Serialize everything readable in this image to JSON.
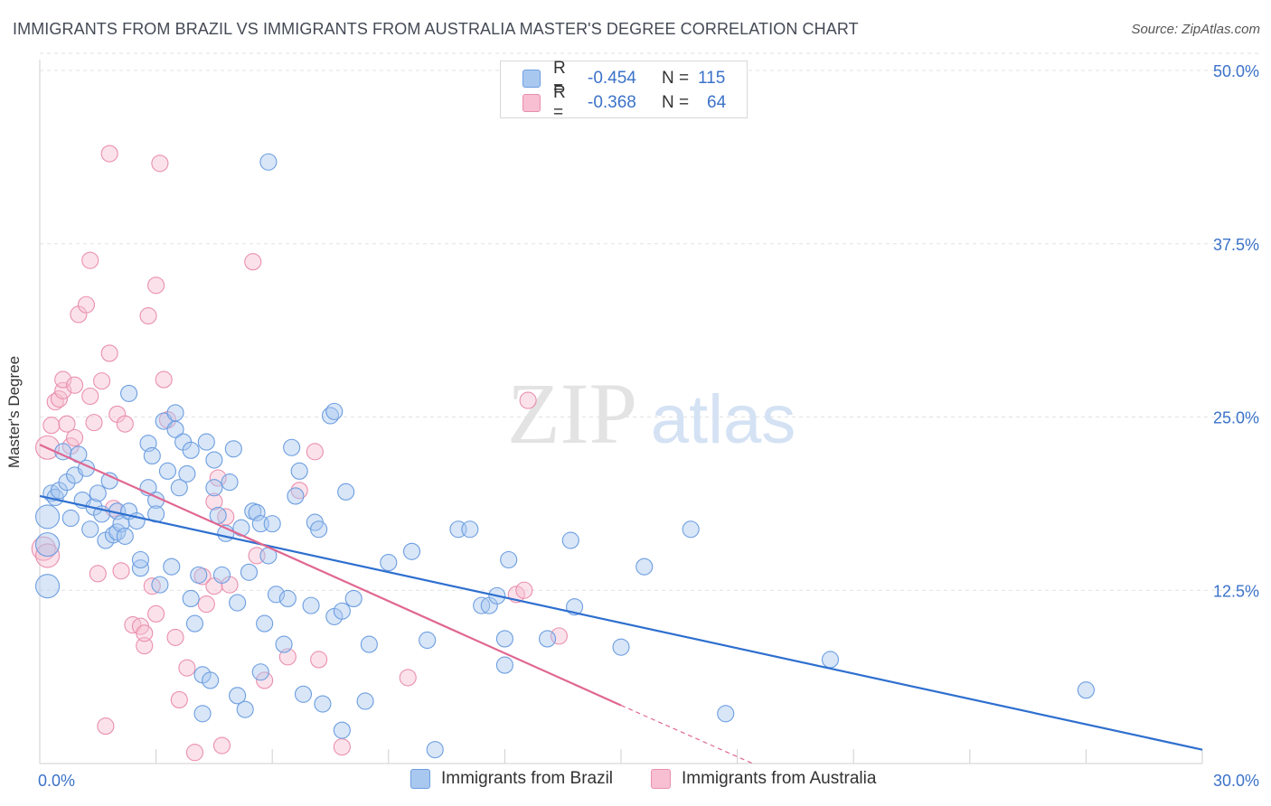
{
  "title": "IMMIGRANTS FROM BRAZIL VS IMMIGRANTS FROM AUSTRALIA MASTER'S DEGREE CORRELATION CHART",
  "source": "Source: ZipAtlas.com",
  "watermark": {
    "zip": "ZIP",
    "atlas": "atlas"
  },
  "colors": {
    "brazil_fill": "#a9c8ef",
    "brazil_stroke": "#6d9ee0",
    "brazil_line": "#2e6fcf",
    "australia_fill": "#f7bfd1",
    "australia_stroke": "#ea8fae",
    "australia_line": "#e06792",
    "tick_label": "#3b72c9",
    "grid": "#e1e1e1"
  },
  "legend_top": {
    "rows": [
      {
        "r_label": "R =",
        "r_value": "-0.454",
        "n_label": "N =",
        "n_value": "115"
      },
      {
        "r_label": "R =",
        "r_value": "-0.368",
        "n_label": "N =",
        "n_value": "64"
      }
    ]
  },
  "legend_bottom": {
    "brazil": "Immigrants from Brazil",
    "australia": "Immigrants from Australia"
  },
  "chart_data": {
    "type": "scatter",
    "title": "IMMIGRANTS FROM BRAZIL VS IMMIGRANTS FROM AUSTRALIA MASTER'S DEGREE CORRELATION CHART",
    "xlabel": "",
    "ylabel": "Master's Degree",
    "xlim": [
      0,
      30
    ],
    "ylim": [
      0,
      50
    ],
    "x_tick_labels": [
      {
        "value": 0,
        "label": "0.0%"
      },
      {
        "value": 30,
        "label": "30.0%"
      }
    ],
    "y_tick_labels": [
      {
        "value": 12.5,
        "label": "12.5%"
      },
      {
        "value": 25,
        "label": "25.0%"
      },
      {
        "value": 37.5,
        "label": "37.5%"
      },
      {
        "value": 50,
        "label": "50.0%"
      }
    ],
    "x_minor_ticks": [
      3,
      6,
      9,
      12,
      15,
      18,
      21,
      24,
      27,
      30
    ],
    "grid": true,
    "legend_position": "top-center",
    "series": [
      {
        "name": "Immigrants from Brazil",
        "r": -0.454,
        "n": 115,
        "trend": {
          "x0": 0,
          "y0": 19.3,
          "x1": 30,
          "y1": 1.0
        },
        "points": [
          [
            0.2,
            17.8
          ],
          [
            0.2,
            15.8
          ],
          [
            0.2,
            12.8
          ],
          [
            0.3,
            19.5
          ],
          [
            0.4,
            19.2
          ],
          [
            0.5,
            19.7
          ],
          [
            0.6,
            22.5
          ],
          [
            0.7,
            20.3
          ],
          [
            0.8,
            17.7
          ],
          [
            0.9,
            20.8
          ],
          [
            1.0,
            22.3
          ],
          [
            1.1,
            19.0
          ],
          [
            1.2,
            21.3
          ],
          [
            1.3,
            16.9
          ],
          [
            1.4,
            18.5
          ],
          [
            1.5,
            19.5
          ],
          [
            1.6,
            18.0
          ],
          [
            1.7,
            16.1
          ],
          [
            1.8,
            20.4
          ],
          [
            1.9,
            16.5
          ],
          [
            2.0,
            16.7
          ],
          [
            2.0,
            18.2
          ],
          [
            2.1,
            17.3
          ],
          [
            2.3,
            18.2
          ],
          [
            2.2,
            16.4
          ],
          [
            2.3,
            26.7
          ],
          [
            2.5,
            17.5
          ],
          [
            2.6,
            14.1
          ],
          [
            2.6,
            14.7
          ],
          [
            2.8,
            23.1
          ],
          [
            2.8,
            19.9
          ],
          [
            2.9,
            22.2
          ],
          [
            3.0,
            19.0
          ],
          [
            3.0,
            18.0
          ],
          [
            3.1,
            12.9
          ],
          [
            3.2,
            24.7
          ],
          [
            3.3,
            21.1
          ],
          [
            3.4,
            14.2
          ],
          [
            3.5,
            24.1
          ],
          [
            3.5,
            25.3
          ],
          [
            3.6,
            19.9
          ],
          [
            3.7,
            23.2
          ],
          [
            3.8,
            20.9
          ],
          [
            3.9,
            11.9
          ],
          [
            3.9,
            22.6
          ],
          [
            4.0,
            10.1
          ],
          [
            4.1,
            13.6
          ],
          [
            4.2,
            3.6
          ],
          [
            4.2,
            6.4
          ],
          [
            4.3,
            23.2
          ],
          [
            4.4,
            6.0
          ],
          [
            4.5,
            19.9
          ],
          [
            4.5,
            21.9
          ],
          [
            4.6,
            17.9
          ],
          [
            4.7,
            13.6
          ],
          [
            4.8,
            16.6
          ],
          [
            4.9,
            20.3
          ],
          [
            5.0,
            22.7
          ],
          [
            5.1,
            4.9
          ],
          [
            5.1,
            11.6
          ],
          [
            5.2,
            17.0
          ],
          [
            5.3,
            3.9
          ],
          [
            5.4,
            13.8
          ],
          [
            5.5,
            18.2
          ],
          [
            5.6,
            18.1
          ],
          [
            5.7,
            17.3
          ],
          [
            5.7,
            6.6
          ],
          [
            5.8,
            10.1
          ],
          [
            5.9,
            15.0
          ],
          [
            5.9,
            43.4
          ],
          [
            6.0,
            17.3
          ],
          [
            6.1,
            12.2
          ],
          [
            6.3,
            8.6
          ],
          [
            6.4,
            11.9
          ],
          [
            6.5,
            22.8
          ],
          [
            6.6,
            19.3
          ],
          [
            6.7,
            21.1
          ],
          [
            6.8,
            5.0
          ],
          [
            7.0,
            11.4
          ],
          [
            7.1,
            17.4
          ],
          [
            7.2,
            16.9
          ],
          [
            7.3,
            4.3
          ],
          [
            7.5,
            25.1
          ],
          [
            7.6,
            25.4
          ],
          [
            7.6,
            10.6
          ],
          [
            7.8,
            2.4
          ],
          [
            7.8,
            11.0
          ],
          [
            7.9,
            19.6
          ],
          [
            8.1,
            11.9
          ],
          [
            8.4,
            4.5
          ],
          [
            8.5,
            8.6
          ],
          [
            9.0,
            14.5
          ],
          [
            9.6,
            15.3
          ],
          [
            10.0,
            8.9
          ],
          [
            10.2,
            1.0
          ],
          [
            10.8,
            16.9
          ],
          [
            11.1,
            16.9
          ],
          [
            11.4,
            11.4
          ],
          [
            11.6,
            11.4
          ],
          [
            11.8,
            12.1
          ],
          [
            12.0,
            9.0
          ],
          [
            12.0,
            7.1
          ],
          [
            12.1,
            14.7
          ],
          [
            13.1,
            9.0
          ],
          [
            13.7,
            16.1
          ],
          [
            13.8,
            11.3
          ],
          [
            15.0,
            8.4
          ],
          [
            15.6,
            14.2
          ],
          [
            16.8,
            16.9
          ],
          [
            17.7,
            3.6
          ],
          [
            20.4,
            7.5
          ],
          [
            27.0,
            5.3
          ]
        ]
      },
      {
        "name": "Immigrants from Australia",
        "r": -0.368,
        "n": 64,
        "trend": {
          "x0": 0,
          "y0": 23.0,
          "x1": 15.0,
          "y1": 4.2,
          "dash_x1": 18.4,
          "dash_y1": 0
        },
        "points": [
          [
            0.1,
            15.5
          ],
          [
            0.2,
            15.0
          ],
          [
            0.2,
            22.8
          ],
          [
            0.3,
            24.4
          ],
          [
            0.4,
            26.1
          ],
          [
            0.5,
            26.3
          ],
          [
            0.6,
            26.9
          ],
          [
            0.6,
            27.7
          ],
          [
            0.7,
            24.5
          ],
          [
            0.8,
            22.9
          ],
          [
            0.9,
            27.3
          ],
          [
            0.9,
            23.5
          ],
          [
            1.0,
            32.4
          ],
          [
            1.2,
            33.1
          ],
          [
            1.3,
            36.3
          ],
          [
            1.3,
            26.5
          ],
          [
            1.4,
            24.6
          ],
          [
            1.5,
            13.7
          ],
          [
            1.6,
            27.6
          ],
          [
            1.7,
            2.7
          ],
          [
            1.8,
            29.6
          ],
          [
            1.8,
            44.0
          ],
          [
            1.9,
            18.4
          ],
          [
            2.0,
            25.2
          ],
          [
            2.1,
            13.9
          ],
          [
            2.2,
            24.5
          ],
          [
            2.4,
            10.0
          ],
          [
            2.6,
            9.9
          ],
          [
            2.7,
            8.5
          ],
          [
            2.7,
            9.4
          ],
          [
            2.8,
            32.3
          ],
          [
            2.9,
            12.8
          ],
          [
            3.0,
            34.5
          ],
          [
            3.0,
            10.8
          ],
          [
            3.1,
            43.3
          ],
          [
            3.2,
            27.7
          ],
          [
            3.3,
            24.8
          ],
          [
            3.5,
            9.1
          ],
          [
            3.6,
            4.6
          ],
          [
            3.8,
            6.9
          ],
          [
            4.0,
            0.8
          ],
          [
            4.2,
            13.5
          ],
          [
            4.3,
            11.5
          ],
          [
            4.5,
            18.9
          ],
          [
            4.5,
            12.8
          ],
          [
            4.6,
            20.6
          ],
          [
            4.7,
            1.3
          ],
          [
            4.8,
            17.8
          ],
          [
            4.9,
            12.9
          ],
          [
            5.5,
            36.2
          ],
          [
            5.6,
            15.0
          ],
          [
            5.8,
            6.0
          ],
          [
            6.4,
            7.7
          ],
          [
            6.7,
            19.7
          ],
          [
            7.1,
            22.5
          ],
          [
            7.2,
            7.5
          ],
          [
            7.8,
            1.2
          ],
          [
            9.5,
            6.2
          ],
          [
            12.3,
            12.2
          ],
          [
            12.6,
            26.2
          ],
          [
            12.5,
            12.5
          ],
          [
            13.4,
            9.2
          ]
        ]
      }
    ]
  }
}
